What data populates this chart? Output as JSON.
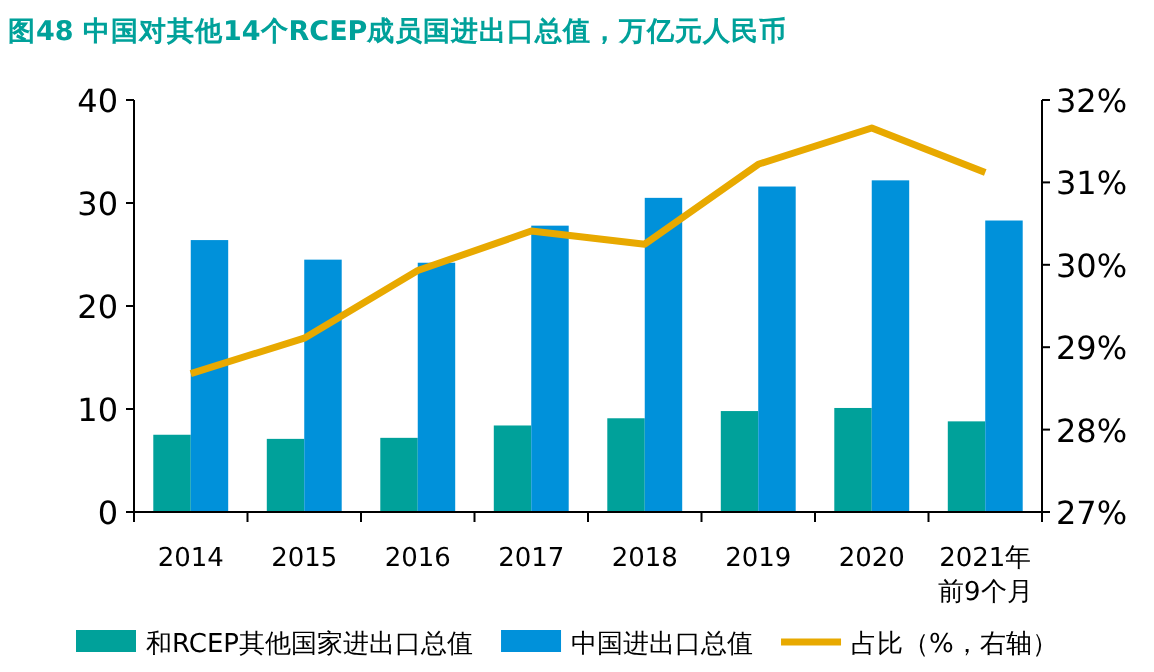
{
  "chart_data": {
    "type": "bar",
    "title": "图48  中国对其他14个RCEP成员国进出口总值，万亿元人民币",
    "categories": [
      "2014",
      "2015",
      "2016",
      "2017",
      "2018",
      "2019",
      "2020",
      "2021年前9个月"
    ],
    "series": [
      {
        "name": "和RCEP其他国家进出口总值",
        "color": "#00a19a",
        "values": [
          7.5,
          7.1,
          7.2,
          8.4,
          9.1,
          9.8,
          10.1,
          8.8
        ]
      },
      {
        "name": "中国进出口总值",
        "color": "#0091da",
        "values": [
          26.4,
          24.5,
          24.2,
          27.8,
          30.5,
          31.6,
          32.2,
          28.3
        ]
      },
      {
        "name": "占比（%，右轴）",
        "color": "#e8a900",
        "type": "line",
        "axis": "y2",
        "values": [
          28.68,
          29.11,
          29.93,
          30.41,
          30.25,
          31.22,
          31.66,
          31.12
        ]
      }
    ],
    "ylim": [
      0,
      40
    ],
    "yticks": [
      0,
      10,
      20,
      30,
      40
    ],
    "y2lim": [
      27,
      32
    ],
    "y2ticks": [
      {
        "value": 27,
        "label": "27%"
      },
      {
        "value": 28,
        "label": "28%"
      },
      {
        "value": 29,
        "label": "29%"
      },
      {
        "value": 30,
        "label": "30%"
      },
      {
        "value": 31,
        "label": "31%"
      },
      {
        "value": 32,
        "label": "32%"
      }
    ],
    "grid": false,
    "legend": "bottom",
    "marker": "none",
    "line_style": "solid"
  }
}
